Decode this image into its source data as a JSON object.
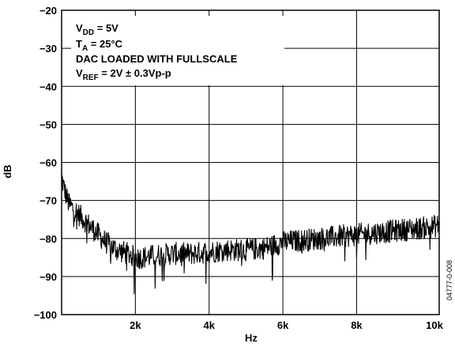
{
  "chart_data": {
    "type": "line",
    "xlabel": "Hz",
    "ylabel": "dB",
    "xlim": [
      0,
      10240
    ],
    "ylim": [
      -100,
      -20
    ],
    "x_ticks": [
      {
        "value": 2000,
        "label": "2k"
      },
      {
        "value": 4000,
        "label": "4k"
      },
      {
        "value": 6000,
        "label": "6k"
      },
      {
        "value": 8000,
        "label": "8k"
      },
      {
        "value": 10240,
        "label": "10k"
      }
    ],
    "y_ticks": [
      {
        "value": -20,
        "label": "−20"
      },
      {
        "value": -30,
        "label": "−30"
      },
      {
        "value": -40,
        "label": "−40"
      },
      {
        "value": -50,
        "label": "−50"
      },
      {
        "value": -60,
        "label": "−60"
      },
      {
        "value": -70,
        "label": "−70"
      },
      {
        "value": -80,
        "label": "−80"
      },
      {
        "value": -90,
        "label": "−90"
      },
      {
        "value": -100,
        "label": "−100"
      }
    ],
    "grid": true,
    "series": [
      {
        "x": [
          0,
          100,
          200,
          400,
          600,
          800,
          1000,
          1200,
          1500,
          1800,
          2000,
          2200,
          2500,
          3000,
          3500,
          4000,
          4500,
          5000,
          5500,
          6000,
          6500,
          7000,
          7500,
          8000,
          8500,
          9000,
          9500,
          10000,
          10240
        ],
        "y": [
          -64,
          -68,
          -71,
          -73,
          -75,
          -77,
          -79,
          -81,
          -83,
          -84,
          -85,
          -85,
          -84.5,
          -84,
          -84,
          -83.5,
          -83,
          -83,
          -82.5,
          -81,
          -80.5,
          -80,
          -79.5,
          -79,
          -78.5,
          -78,
          -77.5,
          -77,
          -76.5
        ],
        "noise_amplitude_db": 3
      }
    ],
    "annotations": {
      "line1": {
        "main": "V",
        "sub": "DD",
        "rest": " = 5V"
      },
      "line2": {
        "main": "T",
        "sub": "A",
        "rest": " = 25°C"
      },
      "line3": {
        "text": "DAC LOADED WITH FULLSCALE"
      },
      "line4": {
        "main": "V",
        "sub": "REF",
        "rest": " = 2V ± 0.3Vp-p"
      }
    },
    "figure_code": "04777-0-008"
  }
}
